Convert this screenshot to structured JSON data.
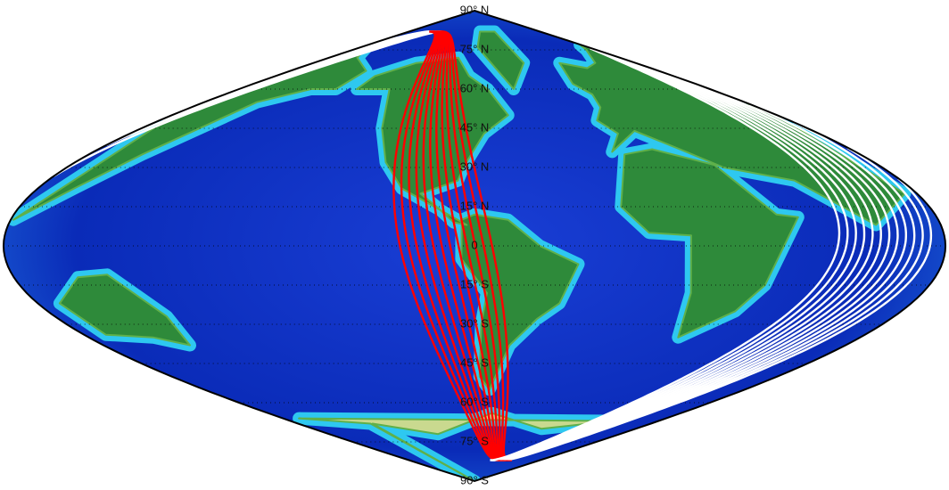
{
  "map": {
    "latitude_labels": [
      "90° N",
      "75° N",
      "60° N",
      "45° N",
      "30° N",
      "15° N",
      "0",
      "15° S",
      "30° S",
      "45° S",
      "60° S",
      "75° S",
      "90° S"
    ]
  }
}
